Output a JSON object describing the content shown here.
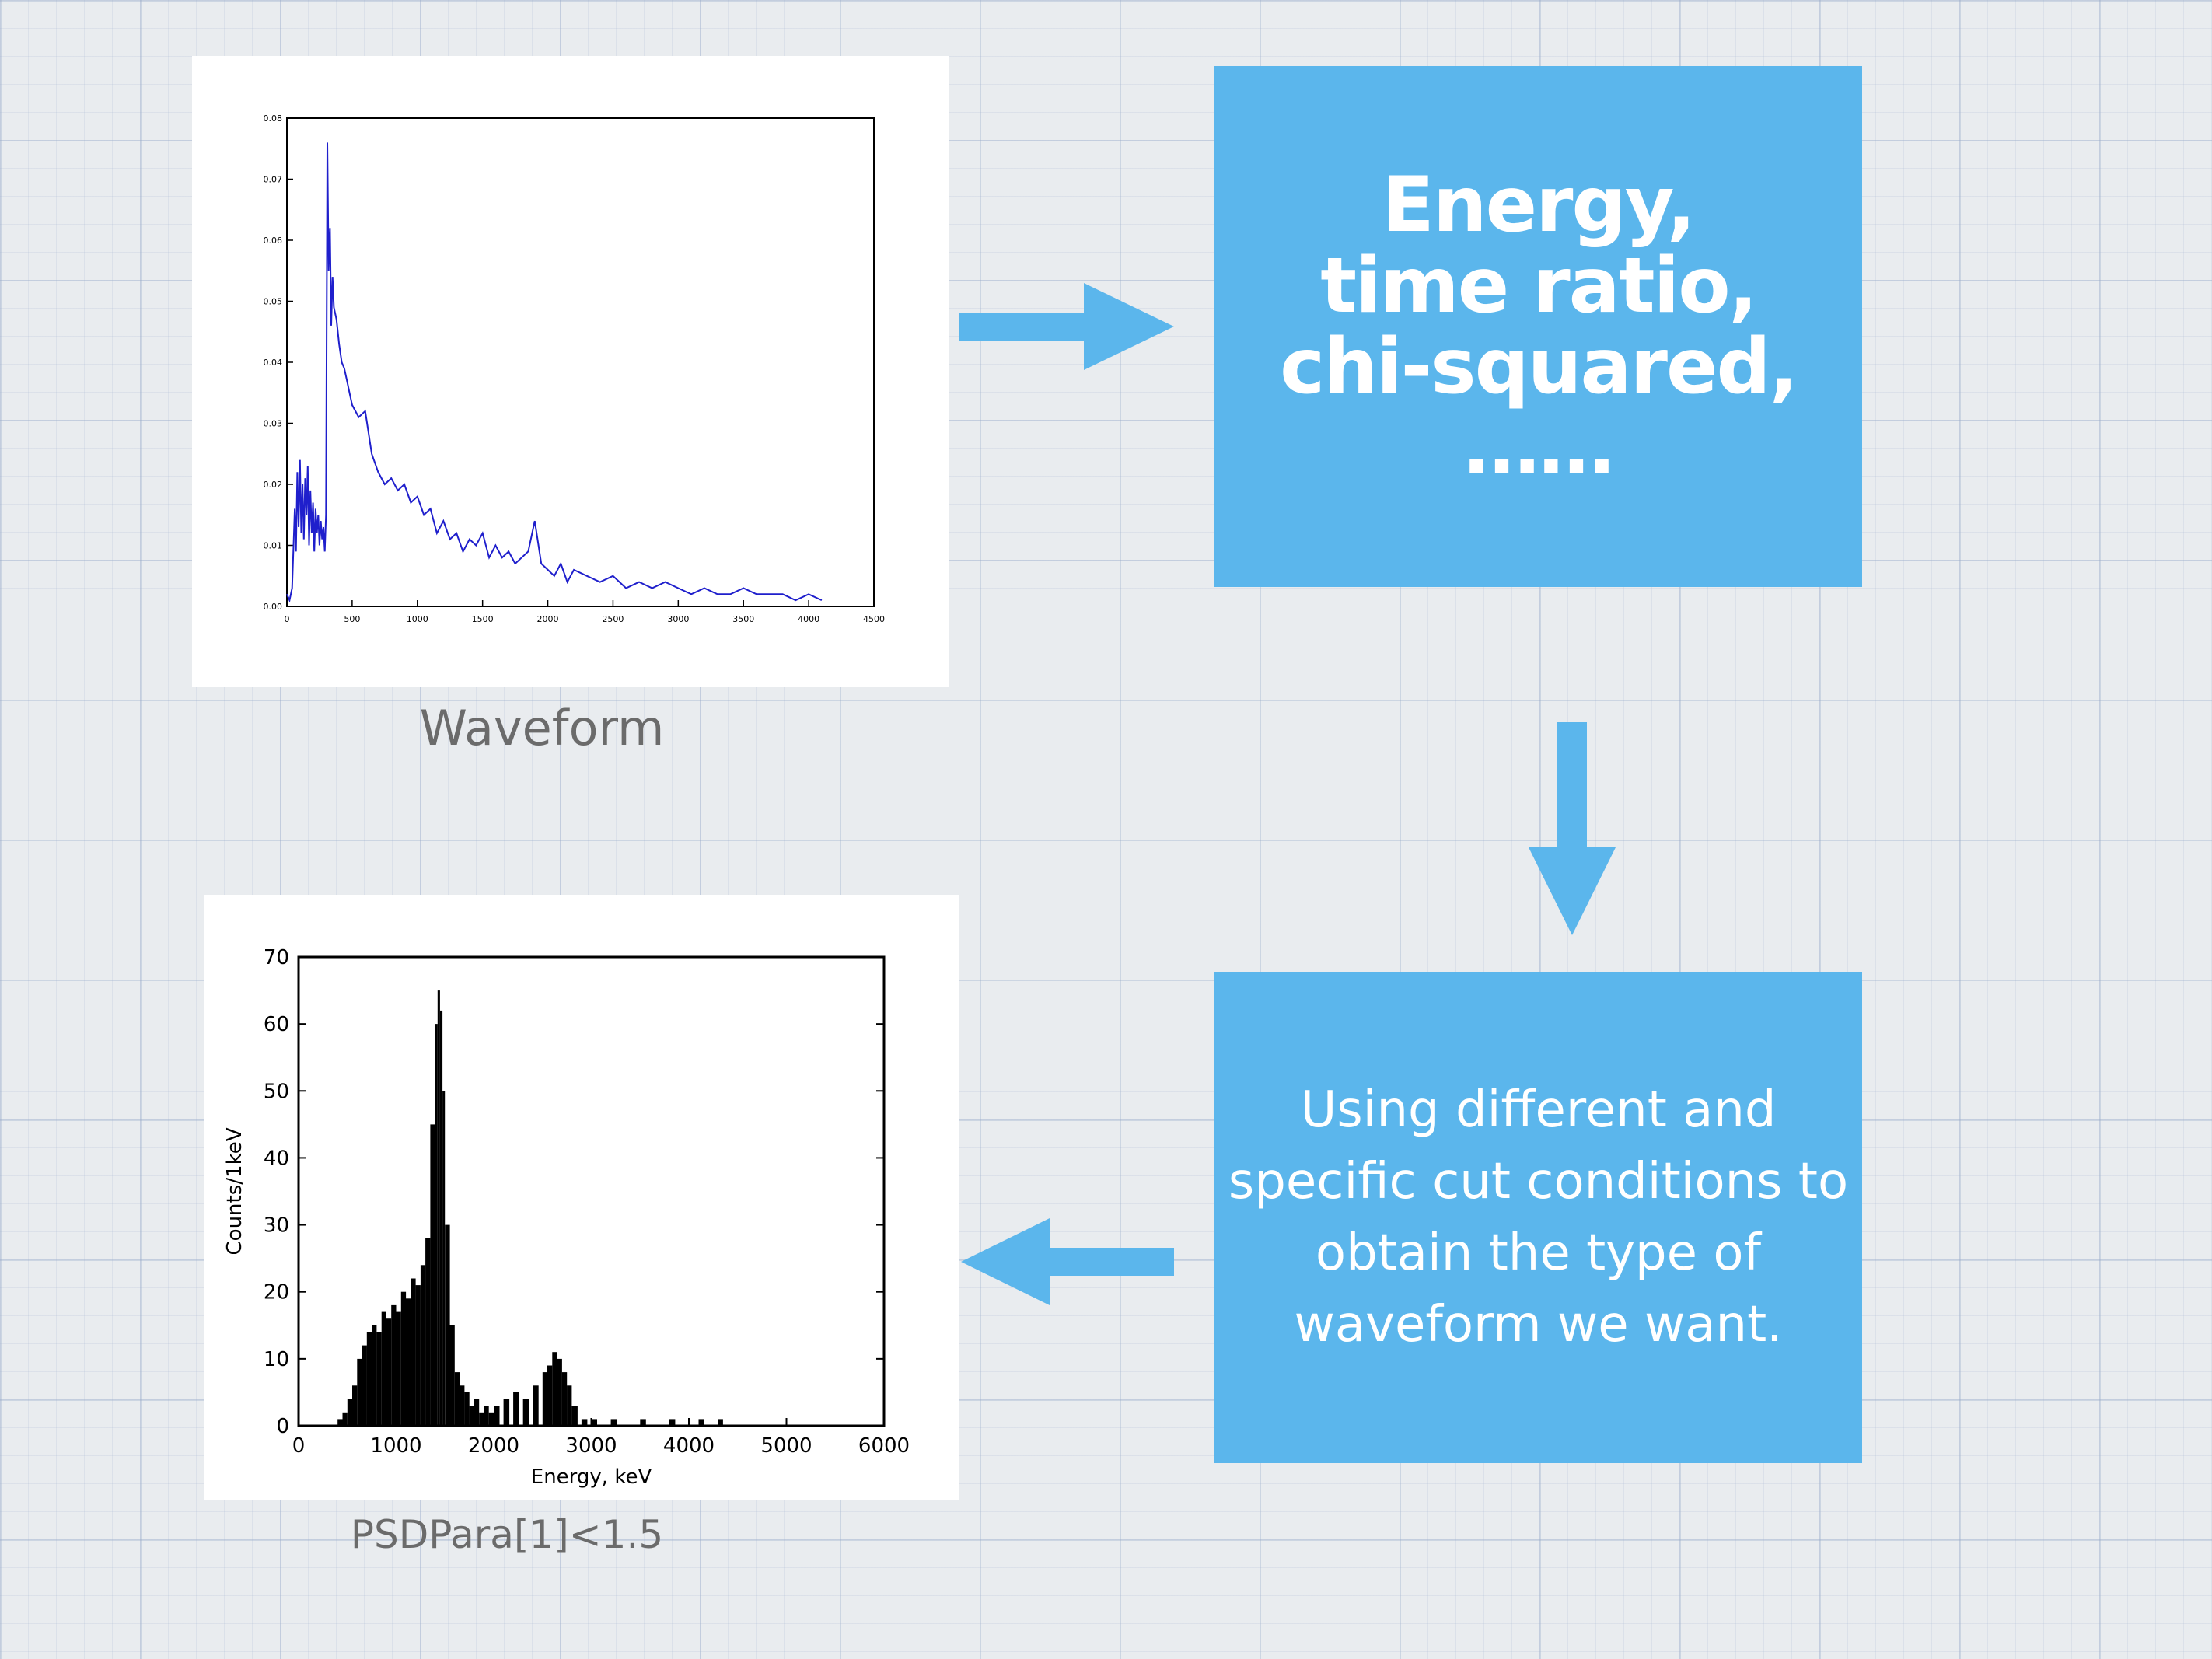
{
  "colors": {
    "box": "#5bb6ec",
    "arrow": "#5bb6ec",
    "waveform_line": "#1f1fcc",
    "histogram": "#000000"
  },
  "captions": {
    "waveform": "Waveform",
    "histogram": "PSDPara[1]<1.5"
  },
  "boxes": {
    "features": {
      "lines": [
        "Energy,",
        "time ratio,",
        "chi-squared,",
        "……"
      ]
    },
    "cuts": {
      "lines": [
        "Using different and",
        "specific cut conditions to",
        "obtain the type of",
        "waveform we want."
      ]
    }
  },
  "arrows": [
    "arrow-right",
    "arrow-down",
    "arrow-left"
  ],
  "chart_data": [
    {
      "type": "line",
      "xlim": [
        0,
        4500
      ],
      "ylim": [
        0,
        0.08
      ],
      "xticks": [
        "0",
        "500",
        "1000",
        "1500",
        "2000",
        "2500",
        "3000",
        "3500",
        "4000",
        "4500"
      ],
      "yticks": [
        "0.00",
        "0.01",
        "0.02",
        "0.03",
        "0.04",
        "0.05",
        "0.06",
        "0.07",
        "0.08"
      ],
      "series": [
        {
          "x": [
            0,
            20,
            40,
            60,
            70,
            80,
            90,
            100,
            110,
            120,
            130,
            140,
            150,
            160,
            170,
            180,
            190,
            200,
            210,
            220,
            230,
            240,
            250,
            260,
            270,
            280,
            290,
            300,
            310,
            320,
            330,
            340,
            350,
            360,
            380,
            400,
            420,
            440,
            460,
            480,
            500,
            550,
            600,
            650,
            700,
            750,
            800,
            850,
            900,
            950,
            1000,
            1050,
            1100,
            1150,
            1200,
            1250,
            1300,
            1350,
            1400,
            1450,
            1500,
            1550,
            1600,
            1650,
            1700,
            1750,
            1800,
            1850,
            1900,
            1950,
            2000,
            2050,
            2100,
            2150,
            2200,
            2300,
            2400,
            2500,
            2600,
            2700,
            2800,
            2900,
            3000,
            3100,
            3200,
            3300,
            3400,
            3500,
            3600,
            3700,
            3800,
            3900,
            4000,
            4100
          ],
          "values": [
            0.002,
            0.001,
            0.003,
            0.016,
            0.009,
            0.022,
            0.013,
            0.024,
            0.012,
            0.02,
            0.011,
            0.021,
            0.015,
            0.023,
            0.01,
            0.019,
            0.012,
            0.017,
            0.009,
            0.016,
            0.012,
            0.015,
            0.01,
            0.014,
            0.011,
            0.013,
            0.009,
            0.015,
            0.076,
            0.055,
            0.062,
            0.046,
            0.054,
            0.049,
            0.047,
            0.043,
            0.04,
            0.039,
            0.037,
            0.035,
            0.033,
            0.031,
            0.032,
            0.025,
            0.022,
            0.02,
            0.021,
            0.019,
            0.02,
            0.017,
            0.018,
            0.015,
            0.016,
            0.012,
            0.014,
            0.011,
            0.012,
            0.009,
            0.011,
            0.01,
            0.012,
            0.008,
            0.01,
            0.008,
            0.009,
            0.007,
            0.008,
            0.009,
            0.014,
            0.007,
            0.006,
            0.005,
            0.007,
            0.004,
            0.006,
            0.005,
            0.004,
            0.005,
            0.003,
            0.004,
            0.003,
            0.004,
            0.003,
            0.002,
            0.003,
            0.002,
            0.002,
            0.003,
            0.002,
            0.002,
            0.002,
            0.001,
            0.002,
            0.001
          ]
        }
      ]
    },
    {
      "type": "bar",
      "xlabel": "Energy, keV",
      "ylabel": "Counts/1keV",
      "xlim": [
        0,
        6000
      ],
      "ylim": [
        0,
        70
      ],
      "xticks": [
        "0",
        "1000",
        "2000",
        "3000",
        "4000",
        "5000",
        "6000"
      ],
      "yticks": [
        "0",
        "10",
        "20",
        "30",
        "40",
        "50",
        "60",
        "70"
      ],
      "x": [
        400,
        450,
        500,
        550,
        600,
        650,
        700,
        750,
        800,
        850,
        900,
        950,
        1000,
        1050,
        1100,
        1150,
        1200,
        1250,
        1300,
        1350,
        1400,
        1425,
        1450,
        1475,
        1500,
        1550,
        1600,
        1650,
        1700,
        1750,
        1800,
        1850,
        1900,
        1950,
        2000,
        2100,
        2200,
        2300,
        2400,
        2500,
        2550,
        2600,
        2650,
        2700,
        2750,
        2800,
        2900,
        3000,
        3200,
        3500,
        3800,
        4100,
        4300
      ],
      "values": [
        1,
        2,
        4,
        6,
        10,
        12,
        14,
        15,
        14,
        17,
        16,
        18,
        17,
        20,
        19,
        22,
        21,
        24,
        28,
        45,
        60,
        65,
        62,
        50,
        30,
        15,
        8,
        6,
        5,
        3,
        4,
        2,
        3,
        2,
        3,
        4,
        5,
        4,
        6,
        8,
        9,
        11,
        10,
        8,
        6,
        3,
        1,
        1,
        1,
        1,
        1,
        1,
        1
      ]
    }
  ]
}
